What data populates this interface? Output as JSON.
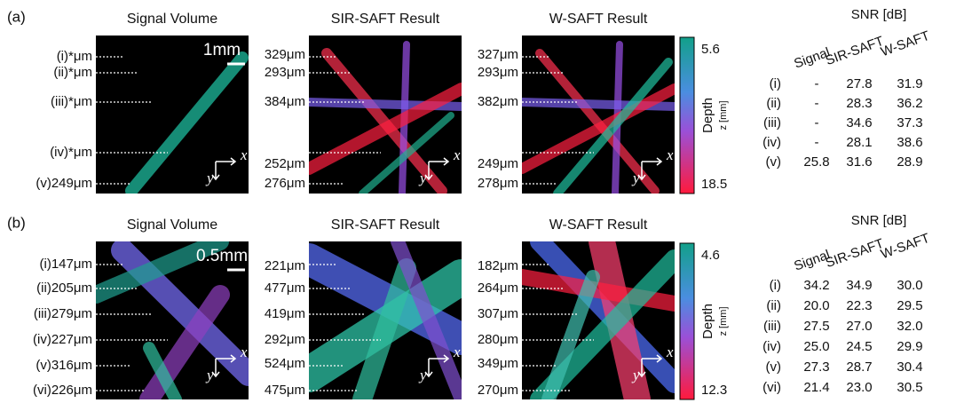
{
  "panels": [
    {
      "label": "(a)",
      "titles": [
        "Signal Volume",
        "SIR-SAFT Result",
        "W-SAFT Result"
      ],
      "scale": "1mm",
      "left_labels": [
        "(i)*μm",
        "(ii)*μm",
        "(iii)*μm",
        "(iv)*μm",
        "(v)249μm"
      ],
      "mid_labels": [
        "329μm",
        "293μm",
        "384μm",
        "252μm",
        "276μm"
      ],
      "right_labels": [
        "327μm",
        "293μm",
        "382μm",
        "249μm",
        "278μm"
      ],
      "axes": {
        "x": "x",
        "y": "y"
      },
      "colorbar": {
        "top": "5.6",
        "bottom": "18.5",
        "title": "Depth",
        "subtitle": "z [mm]"
      },
      "table": {
        "title": "SNR [dB]",
        "columns": [
          "Signal",
          "SIR-SAFT",
          "W-SAFT"
        ],
        "rows": [
          [
            "(i)",
            "-",
            "27.8",
            "31.9"
          ],
          [
            "(ii)",
            "-",
            "28.3",
            "36.2"
          ],
          [
            "(iii)",
            "-",
            "34.6",
            "37.3"
          ],
          [
            "(iv)",
            "-",
            "28.1",
            "38.6"
          ],
          [
            "(v)",
            "25.8",
            "31.6",
            "28.9"
          ]
        ]
      }
    },
    {
      "label": "(b)",
      "titles": [
        "Signal Volume",
        "SIR-SAFT Result",
        "W-SAFT Result"
      ],
      "scale": "0.5mm",
      "left_labels": [
        "(i)147μm",
        "(ii)205μm",
        "(iii)279μm",
        "(iv)227μm",
        "(v)316μm",
        "(vi)226μm"
      ],
      "mid_labels": [
        "221μm",
        "477μm",
        "419μm",
        "292μm",
        "524μm",
        "475μm"
      ],
      "right_labels": [
        "182μm",
        "264μm",
        "307μm",
        "280μm",
        "349μm",
        "270μm"
      ],
      "axes": {
        "x": "x",
        "y": "y"
      },
      "colorbar": {
        "top": "4.6",
        "bottom": "12.3",
        "title": "Depth",
        "subtitle": "z [mm]"
      },
      "table": {
        "title": "SNR [dB]",
        "columns": [
          "Signal",
          "SIR-SAFT",
          "W-SAFT"
        ],
        "rows": [
          [
            "(i)",
            "34.2",
            "34.9",
            "30.0"
          ],
          [
            "(ii)",
            "20.0",
            "22.3",
            "29.5"
          ],
          [
            "(iii)",
            "27.5",
            "27.0",
            "32.0"
          ],
          [
            "(iv)",
            "25.0",
            "24.5",
            "29.9"
          ],
          [
            "(v)",
            "27.3",
            "28.7",
            "30.4"
          ],
          [
            "(vi)",
            "21.4",
            "23.0",
            "30.5"
          ]
        ]
      }
    }
  ]
}
